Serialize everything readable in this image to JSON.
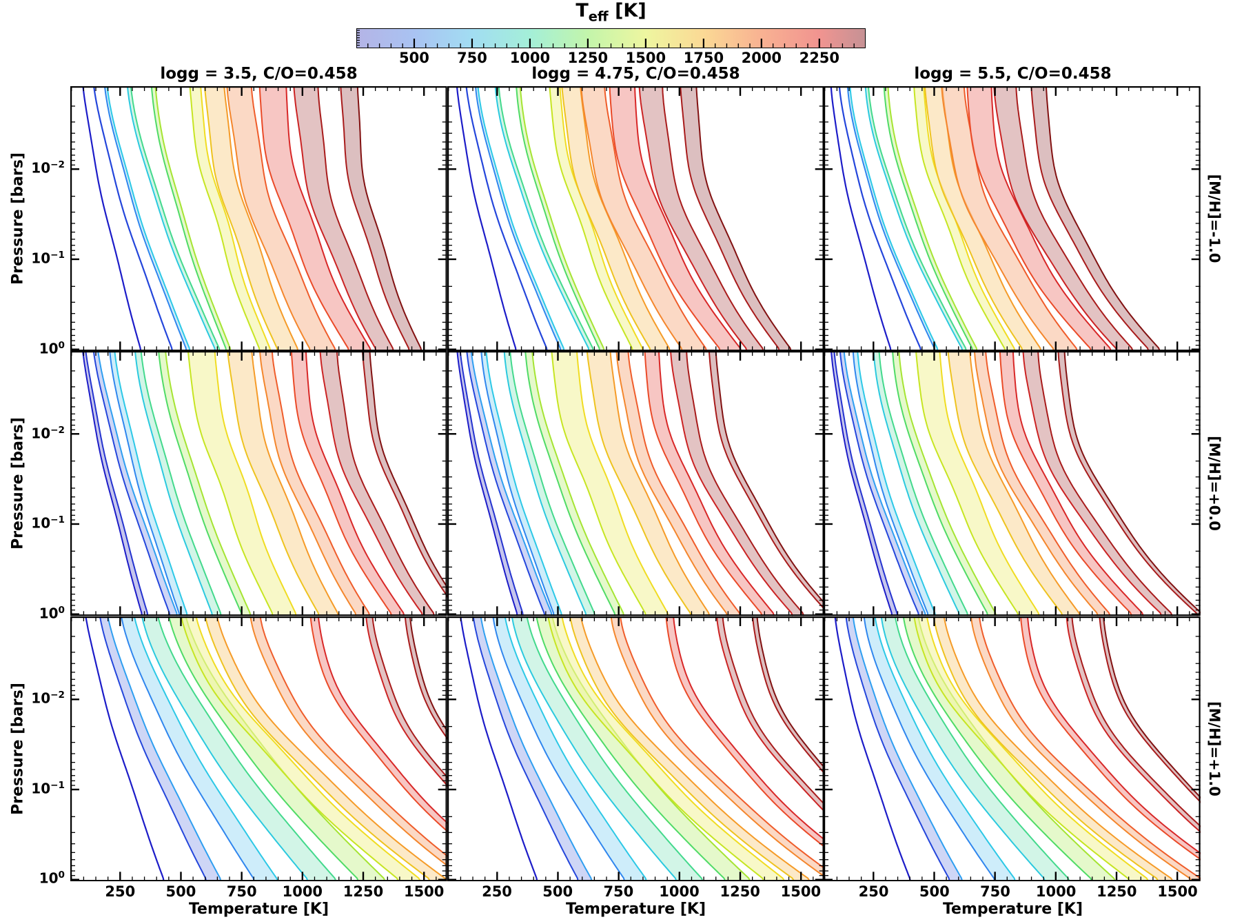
{
  "colorbar": {
    "title_base": "T",
    "title_sub": "eff",
    "title_unit": " [K]",
    "vmin": 250,
    "vmax": 2450,
    "ticks": [
      500,
      750,
      1000,
      1250,
      1500,
      1750,
      2000,
      2250
    ],
    "minor_step": 50,
    "stops": [
      {
        "t": 250,
        "c": "#b4b4e6"
      },
      {
        "t": 500,
        "c": "#a9c3f2"
      },
      {
        "t": 750,
        "c": "#a2ddf2"
      },
      {
        "t": 1000,
        "c": "#a4efd8"
      },
      {
        "t": 1250,
        "c": "#c3f5ab"
      },
      {
        "t": 1500,
        "c": "#eef6a0"
      },
      {
        "t": 1750,
        "c": "#fbd995"
      },
      {
        "t": 2000,
        "c": "#f8b292"
      },
      {
        "t": 2250,
        "c": "#f19490"
      },
      {
        "t": 2450,
        "c": "#c69295"
      }
    ]
  },
  "columns": [
    {
      "title": "logg = 3.5, C/O=0.458"
    },
    {
      "title": "logg = 4.75, C/O=0.458"
    },
    {
      "title": "logg = 5.5, C/O=0.458"
    }
  ],
  "rows": [
    {
      "label": "[M/H]=-1.0"
    },
    {
      "label": "[M/H]=+0.0"
    },
    {
      "label": "[M/H]=+1.0"
    }
  ],
  "axes": {
    "x_label": "Temperature [K]",
    "y_label": "Pressure [bars]",
    "tick_base": "10"
  },
  "palette": {
    "250": {
      "e1": "#1c1cc8",
      "e2": "#2433cf",
      "fill": "#9c9ce0"
    },
    "500": {
      "e1": "#2446db",
      "e2": "#2e9ff0",
      "fill": "#aab8ef"
    },
    "750": {
      "e1": "#2f86ee",
      "e2": "#2cc8e6",
      "fill": "#abe0f6"
    },
    "1000": {
      "e1": "#2bc9df",
      "e2": "#43d98c",
      "fill": "#b2eed6"
    },
    "1250": {
      "e1": "#4fdb66",
      "e2": "#a5e432",
      "fill": "#d3f4a6"
    },
    "1500": {
      "e1": "#c6e522",
      "e2": "#f0dc22",
      "fill": "#f3f3a0"
    },
    "1750": {
      "e1": "#eec31f",
      "e2": "#f59b28",
      "fill": "#fad9a0"
    },
    "2000": {
      "e1": "#f4862c",
      "e2": "#ef5c2a",
      "fill": "#f8bd9b"
    },
    "2200": {
      "e1": "#ea4a28",
      "e2": "#d82727",
      "fill": "#f29d97"
    },
    "2350": {
      "e1": "#cb2323",
      "e2": "#a81b1b",
      "fill": "#cf9898"
    },
    "2450": {
      "e1": "#a81b1b",
      "e2": "#821111",
      "fill": "#c29093"
    }
  },
  "chart_data": {
    "type": "line",
    "description": "Grid of 3x3 panels of atmospheric P-T profiles; bands of model temperature ranges colored by effective temperature Teff.",
    "x_axis": {
      "label": "Temperature [K]",
      "min": 45,
      "max": 1595,
      "major_ticks": [
        250,
        500,
        750,
        1000,
        1250,
        1500
      ],
      "minor_step": 50
    },
    "y_axis": {
      "label": "Pressure [bars]",
      "scale": "log",
      "logp_top": -2.92,
      "logp_bottom": 0.02,
      "labeled_exponents": [
        -2,
        -1,
        0
      ]
    },
    "bands_format": [
      "teff_K",
      "T_at_0.001bar",
      "T_at_1bar",
      "halfwidth_top_K",
      "halfwidth_bottom_K",
      "shape_exponent"
    ],
    "panels": [
      {
        "row": 0,
        "col": 0,
        "logg": 3.5,
        "mh": -1.0,
        "co": 0.458,
        "bands": [
          [
            250,
            95,
            335,
            0,
            0,
            1.3
          ],
          [
            500,
            140,
            465,
            0,
            0,
            1.32
          ],
          [
            750,
            190,
            530,
            5,
            7,
            1.35
          ],
          [
            1000,
            285,
            650,
            7,
            9,
            1.4
          ],
          [
            1250,
            385,
            695,
            8,
            9,
            1.45
          ],
          [
            1500,
            555,
            845,
            22,
            22,
            1.54
          ],
          [
            1750,
            635,
            940,
            40,
            42,
            1.64
          ],
          [
            2000,
            740,
            1085,
            50,
            52,
            1.76
          ],
          [
            2200,
            875,
            1235,
            55,
            45,
            1.86
          ],
          [
            2350,
            1015,
            1340,
            50,
            36,
            1.92
          ],
          [
            2450,
            1190,
            1465,
            35,
            25,
            1.97
          ]
        ]
      },
      {
        "row": 0,
        "col": 1,
        "logg": 4.75,
        "mh": -1.0,
        "co": 0.458,
        "bands": [
          [
            250,
            83,
            328,
            0,
            0,
            1.38
          ],
          [
            500,
            122,
            456,
            0,
            0,
            1.4
          ],
          [
            750,
            165,
            519,
            5,
            7,
            1.43
          ],
          [
            1000,
            248,
            637,
            7,
            9,
            1.48
          ],
          [
            1250,
            335,
            681,
            8,
            9,
            1.53
          ],
          [
            1500,
            483,
            828,
            21,
            21,
            1.62
          ],
          [
            1750,
            552,
            921,
            38,
            40,
            1.72
          ],
          [
            2000,
            644,
            1063,
            48,
            50,
            1.84
          ],
          [
            2200,
            761,
            1210,
            52,
            43,
            1.94
          ],
          [
            2350,
            883,
            1313,
            48,
            34,
            2.0
          ],
          [
            2450,
            1035,
            1436,
            33,
            24,
            2.05
          ]
        ]
      },
      {
        "row": 0,
        "col": 2,
        "logg": 5.5,
        "mh": -1.0,
        "co": 0.458,
        "bands": [
          [
            250,
            74,
            322,
            0,
            0,
            1.45
          ],
          [
            500,
            109,
            446,
            0,
            0,
            1.47
          ],
          [
            750,
            148,
            509,
            5,
            6,
            1.5
          ],
          [
            1000,
            222,
            624,
            6,
            8,
            1.55
          ],
          [
            1250,
            300,
            667,
            8,
            9,
            1.6
          ],
          [
            1500,
            433,
            811,
            20,
            20,
            1.69
          ],
          [
            1750,
            495,
            902,
            36,
            38,
            1.79
          ],
          [
            2000,
            577,
            1042,
            46,
            48,
            1.91
          ],
          [
            2200,
            682,
            1186,
            50,
            41,
            2.01
          ],
          [
            2350,
            792,
            1286,
            46,
            33,
            2.07
          ],
          [
            2450,
            928,
            1406,
            31,
            23,
            2.12
          ]
        ]
      },
      {
        "row": 1,
        "col": 0,
        "logg": 3.5,
        "mh": 0.0,
        "co": 0.458,
        "bands": [
          [
            250,
            100,
            352,
            6,
            12,
            1.28
          ],
          [
            500,
            148,
            470,
            9,
            15,
            1.31
          ],
          [
            750,
            216,
            510,
            10,
            16,
            1.34
          ],
          [
            1000,
            322,
            647,
            12,
            18,
            1.38
          ],
          [
            1250,
            420,
            768,
            14,
            18,
            1.43
          ],
          [
            1500,
            580,
            925,
            55,
            48,
            1.54
          ],
          [
            1750,
            739,
            1108,
            50,
            40,
            1.64
          ],
          [
            2000,
            850,
            1250,
            25,
            28,
            1.74
          ],
          [
            2200,
            981,
            1392,
            30,
            26,
            1.84
          ],
          [
            2350,
            1108,
            1520,
            35,
            24,
            1.9
          ],
          [
            2450,
            1260,
            1660,
            15,
            12,
            1.95
          ]
        ]
      },
      {
        "row": 1,
        "col": 1,
        "logg": 4.75,
        "mh": 0.0,
        "co": 0.458,
        "bands": [
          [
            250,
            90,
            345,
            6,
            12,
            1.36
          ],
          [
            500,
            133,
            461,
            9,
            15,
            1.39
          ],
          [
            750,
            194,
            500,
            10,
            16,
            1.42
          ],
          [
            1000,
            290,
            634,
            12,
            18,
            1.46
          ],
          [
            1250,
            378,
            753,
            14,
            18,
            1.51
          ],
          [
            1500,
            522,
            907,
            52,
            46,
            1.62
          ],
          [
            1750,
            665,
            1086,
            48,
            38,
            1.72
          ],
          [
            2000,
            765,
            1225,
            24,
            27,
            1.82
          ],
          [
            2200,
            883,
            1364,
            29,
            25,
            1.92
          ],
          [
            2350,
            997,
            1490,
            33,
            23,
            1.98
          ],
          [
            2450,
            1134,
            1627,
            14,
            11,
            2.03
          ]
        ]
      },
      {
        "row": 1,
        "col": 2,
        "logg": 5.5,
        "mh": 0.0,
        "co": 0.458,
        "bands": [
          [
            250,
            81,
            338,
            6,
            11,
            1.43
          ],
          [
            500,
            120,
            451,
            8,
            14,
            1.46
          ],
          [
            750,
            175,
            490,
            9,
            15,
            1.49
          ],
          [
            1000,
            261,
            621,
            11,
            17,
            1.53
          ],
          [
            1250,
            340,
            737,
            13,
            17,
            1.58
          ],
          [
            1500,
            470,
            888,
            49,
            43,
            1.69
          ],
          [
            1750,
            599,
            1064,
            45,
            36,
            1.79
          ],
          [
            2000,
            689,
            1200,
            23,
            25,
            1.89
          ],
          [
            2200,
            794,
            1336,
            27,
            24,
            1.99
          ],
          [
            2350,
            897,
            1459,
            31,
            22,
            2.05
          ],
          [
            2450,
            1021,
            1594,
            13,
            10,
            2.1
          ]
        ]
      },
      {
        "row": 2,
        "col": 0,
        "logg": 3.5,
        "mh": 1.0,
        "co": 0.458,
        "bands": [
          [
            250,
            105,
            430,
            0,
            0,
            1.25
          ],
          [
            500,
            180,
            635,
            16,
            30,
            1.3
          ],
          [
            750,
            278,
            850,
            26,
            48,
            1.33
          ],
          [
            1000,
            368,
            1080,
            32,
            58,
            1.36
          ],
          [
            1250,
            480,
            1285,
            34,
            55,
            1.4
          ],
          [
            1500,
            525,
            1440,
            30,
            45,
            1.5
          ],
          [
            1750,
            620,
            1560,
            24,
            34,
            1.58
          ],
          [
            2000,
            805,
            1700,
            20,
            26,
            1.68
          ],
          [
            2200,
            1045,
            1860,
            16,
            20,
            1.78
          ],
          [
            2350,
            1275,
            2000,
            13,
            16,
            1.84
          ],
          [
            2450,
            1430,
            2150,
            10,
            12,
            1.88
          ]
        ]
      },
      {
        "row": 2,
        "col": 1,
        "logg": 4.75,
        "mh": 1.0,
        "co": 0.458,
        "bands": [
          [
            250,
            97,
            415,
            0,
            0,
            1.32
          ],
          [
            500,
            165,
            612,
            15,
            28,
            1.37
          ],
          [
            750,
            255,
            820,
            24,
            45,
            1.4
          ],
          [
            1000,
            338,
            1042,
            30,
            54,
            1.43
          ],
          [
            1250,
            440,
            1240,
            32,
            51,
            1.47
          ],
          [
            1500,
            482,
            1390,
            28,
            42,
            1.56
          ],
          [
            1750,
            568,
            1505,
            22,
            32,
            1.64
          ],
          [
            2000,
            737,
            1640,
            19,
            24,
            1.74
          ],
          [
            2200,
            956,
            1795,
            15,
            19,
            1.84
          ],
          [
            2350,
            1166,
            1930,
            12,
            15,
            1.9
          ],
          [
            2450,
            1308,
            2075,
            9,
            11,
            1.94
          ]
        ]
      },
      {
        "row": 2,
        "col": 2,
        "logg": 5.5,
        "mh": 1.0,
        "co": 0.458,
        "bands": [
          [
            250,
            90,
            402,
            0,
            0,
            1.38
          ],
          [
            500,
            150,
            590,
            14,
            26,
            1.43
          ],
          [
            750,
            232,
            792,
            22,
            42,
            1.46
          ],
          [
            1000,
            308,
            1006,
            28,
            50,
            1.49
          ],
          [
            1250,
            400,
            1197,
            30,
            48,
            1.53
          ],
          [
            1500,
            438,
            1342,
            26,
            39,
            1.62
          ],
          [
            1750,
            515,
            1453,
            21,
            30,
            1.7
          ],
          [
            2000,
            668,
            1583,
            17,
            22,
            1.8
          ],
          [
            2200,
            866,
            1733,
            14,
            18,
            1.9
          ],
          [
            2350,
            1056,
            1863,
            11,
            14,
            1.96
          ],
          [
            2450,
            1186,
            2003,
            8,
            10,
            2.0
          ]
        ]
      }
    ]
  }
}
